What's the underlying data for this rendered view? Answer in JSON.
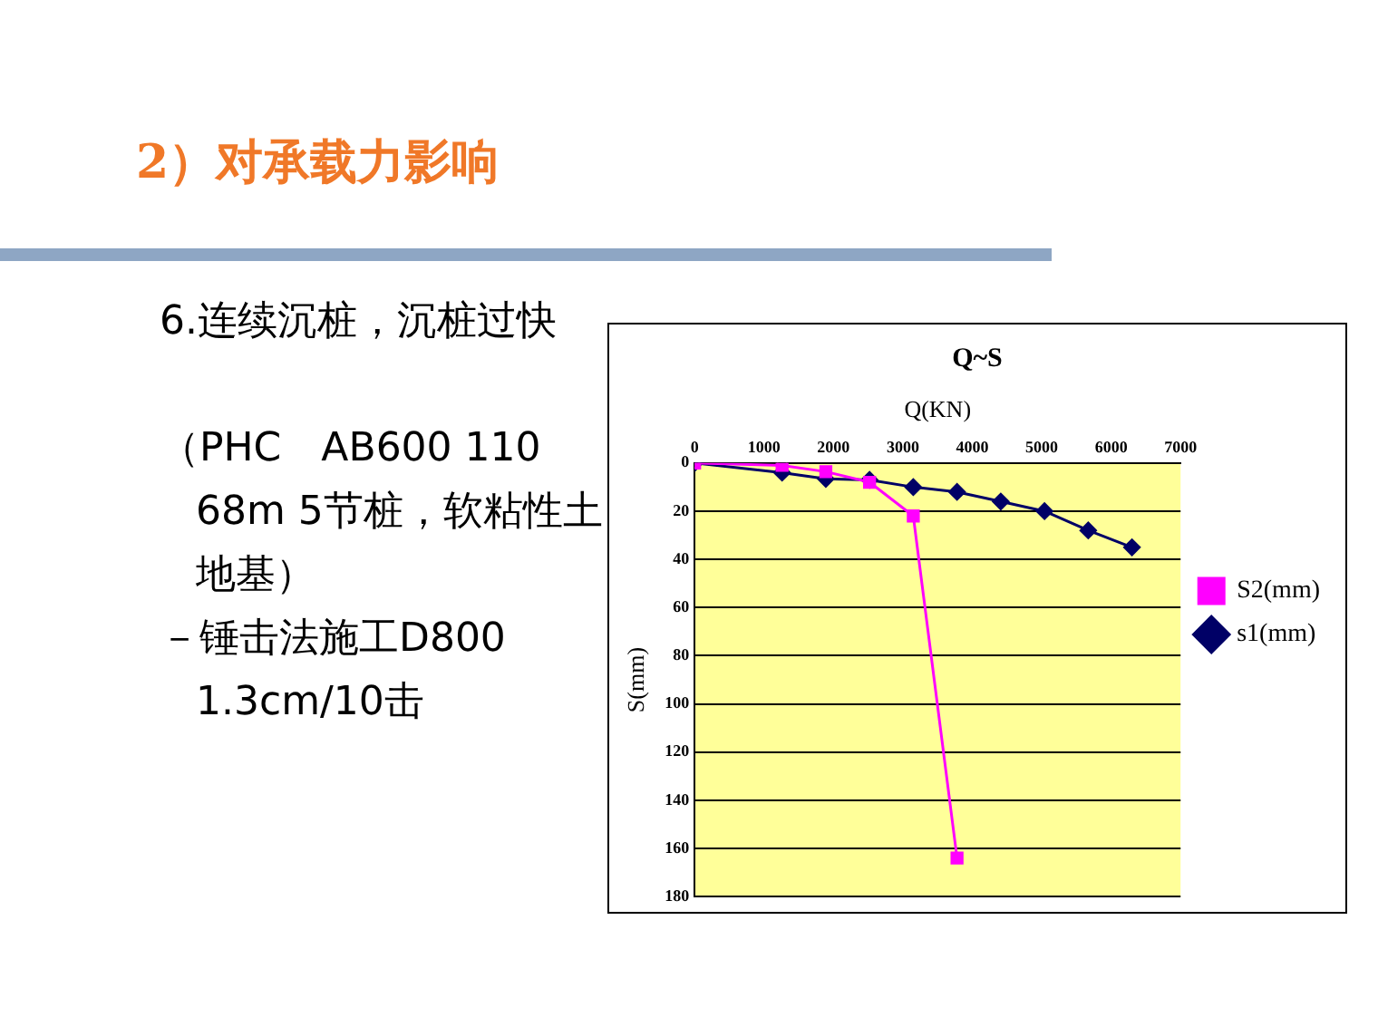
{
  "chart_data": {
    "type": "line",
    "title": "Q~S",
    "xlabel": "Q(KN)",
    "ylabel": "S(mm)",
    "annotations": [
      "2）对承载力影响",
      "6.连续沉桩，沉桩过快",
      "（PHC　AB600 110　68m  5节桩，软粘性土地基）",
      "－锤击法施工D800 1.3cm/10击"
    ],
    "series": [
      {
        "name": "s1(mm)",
        "color": "#000066",
        "marker": "diamond",
        "x": [
          0,
          1260,
          1890,
          2520,
          3150,
          3780,
          4410,
          5040,
          5670,
          6300
        ],
        "values": [
          0,
          4,
          6.6,
          7,
          10,
          12,
          16,
          20,
          28,
          35
        ]
      },
      {
        "name": "S2(mm)",
        "color": "#ff00ff",
        "marker": "square",
        "x": [
          0,
          1260,
          1890,
          2520,
          3150,
          3780
        ],
        "values": [
          0,
          1,
          3.6,
          8,
          22,
          164
        ]
      }
    ],
    "xlim": [
      0,
      7000
    ],
    "xticks": [
      0,
      1000,
      2000,
      3000,
      4000,
      5000,
      6000,
      7000
    ],
    "ylim": [
      180,
      0
    ],
    "yticks": [
      0,
      20,
      40,
      60,
      80,
      100,
      120,
      140,
      160,
      180
    ],
    "grid": "y",
    "legend": "right",
    "line_style": "solid"
  }
}
